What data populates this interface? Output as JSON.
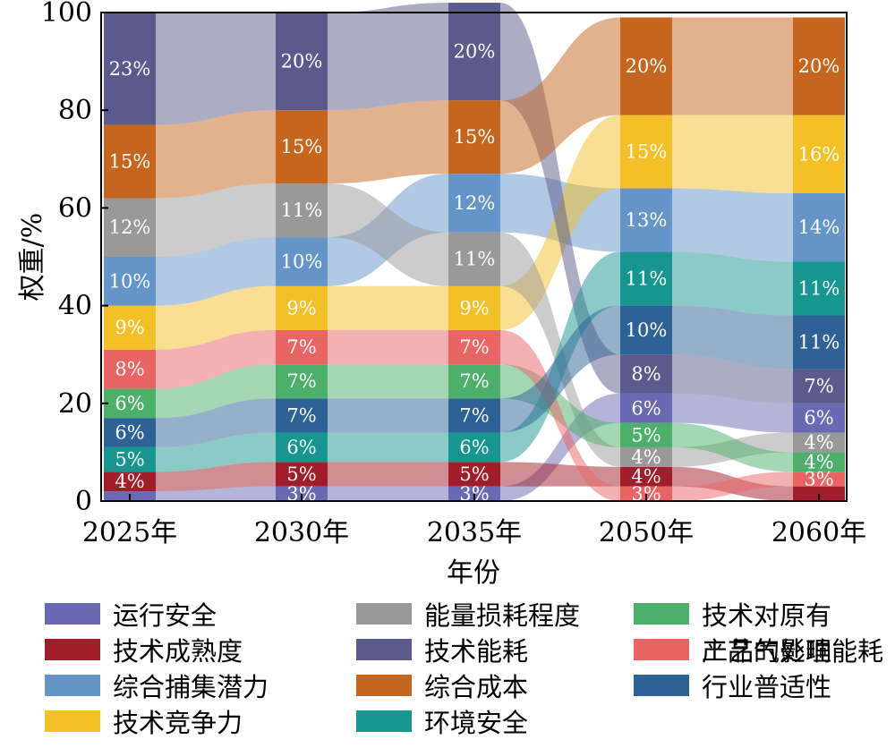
{
  "chart_data": {
    "type": "sankey-stacked-bar",
    "title": "",
    "xlabel": "年份",
    "ylabel": "权重/%",
    "ylim": [
      0,
      100
    ],
    "yticks": [
      0,
      20,
      40,
      60,
      80,
      100
    ],
    "categories": [
      "2025年",
      "2030年",
      "2035年",
      "2050年",
      "2060年"
    ],
    "legend_position": "bottom",
    "series": [
      {
        "key": "yunxing",
        "name": "运行安全",
        "color": "#6a6ab4"
      },
      {
        "key": "chengshu",
        "name": "技术成熟度",
        "color": "#a11d2a"
      },
      {
        "key": "buji",
        "name": "综合捕集潜力",
        "color": "#6494c8"
      },
      {
        "key": "jingzheng",
        "name": "技术竞争力",
        "color": "#f3c027"
      },
      {
        "key": "nengliang",
        "name": "能量损耗程度",
        "color": "#999999"
      },
      {
        "key": "nenghao",
        "name": "技术能耗",
        "color": "#5a5a8c"
      },
      {
        "key": "chengben",
        "name": "综合成本",
        "color": "#c6661e"
      },
      {
        "key": "huanjing",
        "name": "环境安全",
        "color": "#179690"
      },
      {
        "key": "gongyi",
        "name": "技术对原有工艺的影响",
        "color": "#4cb06b"
      },
      {
        "key": "chanpin",
        "name": "产品气处理能耗",
        "color": "#eb6464"
      },
      {
        "key": "pushi",
        "name": "行业普适性",
        "color": "#2e6196"
      }
    ],
    "columns": [
      {
        "year": "2025年",
        "stack": [
          {
            "key": "yunxing",
            "value": 2,
            "label": ""
          },
          {
            "key": "chengshu",
            "value": 4,
            "label": "4%"
          },
          {
            "key": "huanjing",
            "value": 5,
            "label": "5%"
          },
          {
            "key": "pushi",
            "value": 6,
            "label": "6%"
          },
          {
            "key": "gongyi",
            "value": 6,
            "label": "6%"
          },
          {
            "key": "chanpin",
            "value": 8,
            "label": "8%"
          },
          {
            "key": "jingzheng",
            "value": 9,
            "label": "9%"
          },
          {
            "key": "buji",
            "value": 10,
            "label": "10%"
          },
          {
            "key": "nengliang",
            "value": 12,
            "label": "12%"
          },
          {
            "key": "chengben",
            "value": 15,
            "label": "15%"
          },
          {
            "key": "nenghao",
            "value": 23,
            "label": "23%"
          }
        ]
      },
      {
        "year": "2030年",
        "stack": [
          {
            "key": "yunxing",
            "value": 3,
            "label": "3%"
          },
          {
            "key": "chengshu",
            "value": 5,
            "label": "5%"
          },
          {
            "key": "huanjing",
            "value": 6,
            "label": "6%"
          },
          {
            "key": "pushi",
            "value": 7,
            "label": "7%"
          },
          {
            "key": "gongyi",
            "value": 7,
            "label": "7%"
          },
          {
            "key": "chanpin",
            "value": 7,
            "label": "7%"
          },
          {
            "key": "jingzheng",
            "value": 9,
            "label": "9%"
          },
          {
            "key": "buji",
            "value": 10,
            "label": "10%"
          },
          {
            "key": "nengliang",
            "value": 11,
            "label": "11%"
          },
          {
            "key": "chengben",
            "value": 15,
            "label": "15%"
          },
          {
            "key": "nenghao",
            "value": 20,
            "label": "20%"
          }
        ]
      },
      {
        "year": "2035年",
        "stack": [
          {
            "key": "yunxing",
            "value": 3,
            "label": "3%"
          },
          {
            "key": "chengshu",
            "value": 5,
            "label": "5%"
          },
          {
            "key": "huanjing",
            "value": 6,
            "label": "6%"
          },
          {
            "key": "pushi",
            "value": 7,
            "label": "7%"
          },
          {
            "key": "gongyi",
            "value": 7,
            "label": "7%"
          },
          {
            "key": "chanpin",
            "value": 7,
            "label": "7%"
          },
          {
            "key": "jingzheng",
            "value": 9,
            "label": "9%"
          },
          {
            "key": "nengliang",
            "value": 11,
            "label": "11%"
          },
          {
            "key": "buji",
            "value": 12,
            "label": "12%"
          },
          {
            "key": "chengben",
            "value": 15,
            "label": "15%"
          },
          {
            "key": "nenghao",
            "value": 20,
            "label": "20%"
          }
        ]
      },
      {
        "year": "2050年",
        "stack": [
          {
            "key": "chanpin",
            "value": 3,
            "label": "3%"
          },
          {
            "key": "chengshu",
            "value": 4,
            "label": "4%"
          },
          {
            "key": "nengliang",
            "value": 4,
            "label": "4%"
          },
          {
            "key": "gongyi",
            "value": 5,
            "label": "5%"
          },
          {
            "key": "yunxing",
            "value": 6,
            "label": "6%"
          },
          {
            "key": "nenghao",
            "value": 8,
            "label": "8%"
          },
          {
            "key": "pushi",
            "value": 10,
            "label": "10%"
          },
          {
            "key": "huanjing",
            "value": 11,
            "label": "11%"
          },
          {
            "key": "buji",
            "value": 13,
            "label": "13%"
          },
          {
            "key": "jingzheng",
            "value": 15,
            "label": "15%"
          },
          {
            "key": "chengben",
            "value": 20,
            "label": "20%"
          }
        ]
      },
      {
        "year": "2060年",
        "stack": [
          {
            "key": "chengshu",
            "value": 3,
            "label": ""
          },
          {
            "key": "chanpin",
            "value": 3,
            "label": "3%"
          },
          {
            "key": "gongyi",
            "value": 4,
            "label": "4%"
          },
          {
            "key": "nengliang",
            "value": 4,
            "label": "4%"
          },
          {
            "key": "yunxing",
            "value": 6,
            "label": "6%"
          },
          {
            "key": "nenghao",
            "value": 7,
            "label": "7%"
          },
          {
            "key": "pushi",
            "value": 11,
            "label": "11%"
          },
          {
            "key": "huanjing",
            "value": 11,
            "label": "11%"
          },
          {
            "key": "buji",
            "value": 14,
            "label": "14%"
          },
          {
            "key": "jingzheng",
            "value": 16,
            "label": "16%"
          },
          {
            "key": "chengben",
            "value": 20,
            "label": "20%"
          }
        ]
      }
    ],
    "legend": [
      {
        "key": "yunxing",
        "lines": [
          "运行安全"
        ]
      },
      {
        "key": "chengshu",
        "lines": [
          "技术成熟度"
        ]
      },
      {
        "key": "buji",
        "lines": [
          "综合捕集潜力"
        ]
      },
      {
        "key": "jingzheng",
        "lines": [
          "技术竞争力"
        ]
      },
      {
        "key": "nengliang",
        "lines": [
          "能量损耗程度"
        ]
      },
      {
        "key": "nenghao",
        "lines": [
          "技术能耗"
        ]
      },
      {
        "key": "chengben",
        "lines": [
          "综合成本"
        ]
      },
      {
        "key": "huanjing",
        "lines": [
          "环境安全"
        ]
      },
      {
        "key": "gongyi",
        "lines": [
          "技术对原有",
          "工艺的影响"
        ]
      },
      {
        "key": "chanpin",
        "lines": [
          "产品气处理能耗"
        ]
      },
      {
        "key": "pushi",
        "lines": [
          "行业普适性"
        ]
      }
    ]
  }
}
